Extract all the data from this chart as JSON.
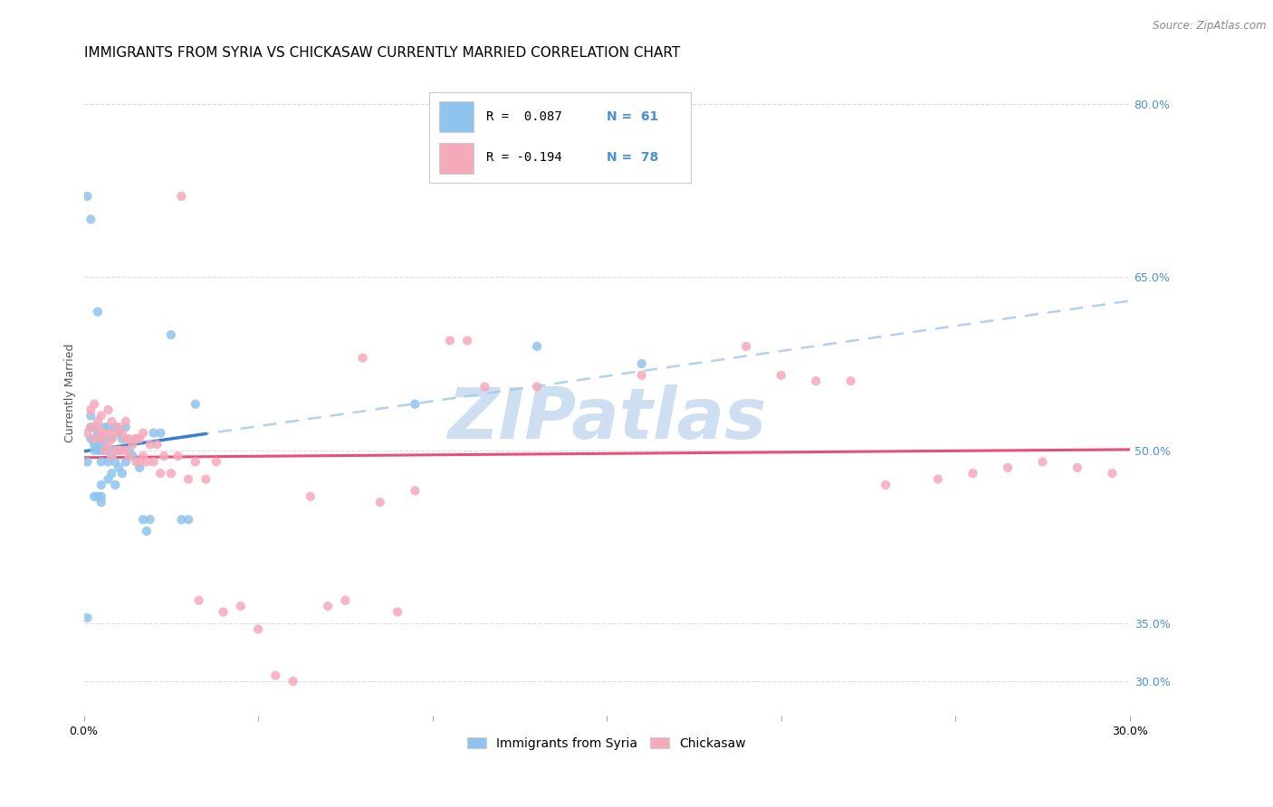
{
  "title": "IMMIGRANTS FROM SYRIA VS CHICKASAW CURRENTLY MARRIED CORRELATION CHART",
  "source": "Source: ZipAtlas.com",
  "ylabel": "Currently Married",
  "legend_labels": [
    "Immigrants from Syria",
    "Chickasaw"
  ],
  "legend_R": [
    "R =  0.087",
    "R = -0.194"
  ],
  "legend_N": [
    "N =  61",
    "N =  78"
  ],
  "blue_color": "#8EC4ED",
  "pink_color": "#F5AABB",
  "blue_line_color": "#3A7FCC",
  "pink_line_color": "#E8507A",
  "dashed_line_color": "#AACCEE",
  "xlim": [
    0.0,
    0.3
  ],
  "ylim": [
    0.27,
    0.83
  ],
  "xticks": [
    0.0,
    0.05,
    0.1,
    0.15,
    0.2,
    0.25,
    0.3
  ],
  "right_yticks": [
    0.3,
    0.35,
    0.5,
    0.65,
    0.8
  ],
  "right_ytick_labels": [
    "30.0%",
    "35.0%",
    "50.0%",
    "65.0%",
    "80.0%"
  ],
  "bottom_xtick_labels": [
    "0.0%",
    "",
    "",
    "",
    "",
    "",
    "30.0%"
  ],
  "watermark": "ZIPatlas",
  "watermark_color": "#C8DCF0",
  "background_color": "#FFFFFF",
  "grid_color": "#DDDDDD",
  "title_fontsize": 11,
  "axis_label_fontsize": 9,
  "tick_fontsize": 9,
  "right_axis_color": "#4A90D9",
  "blue_x": [
    0.001,
    0.001,
    0.001,
    0.002,
    0.002,
    0.002,
    0.002,
    0.003,
    0.003,
    0.003,
    0.003,
    0.003,
    0.004,
    0.004,
    0.004,
    0.004,
    0.004,
    0.005,
    0.005,
    0.005,
    0.005,
    0.005,
    0.005,
    0.006,
    0.006,
    0.006,
    0.006,
    0.007,
    0.007,
    0.007,
    0.007,
    0.008,
    0.008,
    0.008,
    0.009,
    0.009,
    0.009,
    0.009,
    0.01,
    0.01,
    0.01,
    0.011,
    0.011,
    0.012,
    0.012,
    0.013,
    0.014,
    0.015,
    0.016,
    0.017,
    0.018,
    0.019,
    0.02,
    0.022,
    0.025,
    0.028,
    0.03,
    0.032,
    0.095,
    0.13,
    0.16
  ],
  "blue_y": [
    0.355,
    0.49,
    0.72,
    0.51,
    0.52,
    0.53,
    0.7,
    0.46,
    0.5,
    0.505,
    0.51,
    0.52,
    0.46,
    0.5,
    0.505,
    0.515,
    0.62,
    0.455,
    0.46,
    0.47,
    0.49,
    0.5,
    0.51,
    0.5,
    0.505,
    0.51,
    0.52,
    0.475,
    0.49,
    0.5,
    0.52,
    0.48,
    0.495,
    0.51,
    0.47,
    0.49,
    0.5,
    0.52,
    0.485,
    0.5,
    0.515,
    0.48,
    0.51,
    0.49,
    0.52,
    0.5,
    0.495,
    0.51,
    0.485,
    0.44,
    0.43,
    0.44,
    0.515,
    0.515,
    0.6,
    0.44,
    0.44,
    0.54,
    0.54,
    0.59,
    0.575
  ],
  "pink_x": [
    0.001,
    0.002,
    0.002,
    0.003,
    0.003,
    0.004,
    0.004,
    0.005,
    0.005,
    0.005,
    0.006,
    0.006,
    0.007,
    0.007,
    0.007,
    0.008,
    0.008,
    0.008,
    0.009,
    0.009,
    0.01,
    0.01,
    0.011,
    0.011,
    0.012,
    0.012,
    0.012,
    0.013,
    0.013,
    0.014,
    0.015,
    0.015,
    0.016,
    0.016,
    0.017,
    0.017,
    0.018,
    0.019,
    0.02,
    0.021,
    0.022,
    0.023,
    0.025,
    0.027,
    0.028,
    0.03,
    0.032,
    0.033,
    0.035,
    0.038,
    0.04,
    0.045,
    0.05,
    0.055,
    0.06,
    0.065,
    0.07,
    0.075,
    0.08,
    0.085,
    0.09,
    0.095,
    0.105,
    0.11,
    0.115,
    0.13,
    0.16,
    0.19,
    0.2,
    0.21,
    0.22,
    0.23,
    0.245,
    0.255,
    0.265,
    0.275,
    0.285,
    0.295
  ],
  "pink_y": [
    0.515,
    0.52,
    0.535,
    0.51,
    0.54,
    0.52,
    0.525,
    0.51,
    0.515,
    0.53,
    0.5,
    0.515,
    0.505,
    0.515,
    0.535,
    0.495,
    0.51,
    0.525,
    0.5,
    0.515,
    0.5,
    0.52,
    0.5,
    0.515,
    0.5,
    0.51,
    0.525,
    0.495,
    0.51,
    0.505,
    0.49,
    0.51,
    0.49,
    0.51,
    0.495,
    0.515,
    0.49,
    0.505,
    0.49,
    0.505,
    0.48,
    0.495,
    0.48,
    0.495,
    0.72,
    0.475,
    0.49,
    0.37,
    0.475,
    0.49,
    0.36,
    0.365,
    0.345,
    0.305,
    0.3,
    0.46,
    0.365,
    0.37,
    0.58,
    0.455,
    0.36,
    0.465,
    0.595,
    0.595,
    0.555,
    0.555,
    0.565,
    0.59,
    0.565,
    0.56,
    0.56,
    0.47,
    0.475,
    0.48,
    0.485,
    0.49,
    0.485,
    0.48
  ],
  "blue_line_xstart": 0.0,
  "blue_line_xend": 0.035,
  "blue_dash_xstart": 0.0,
  "blue_dash_xend": 0.3,
  "pink_line_xstart": 0.0,
  "pink_line_xend": 0.3
}
